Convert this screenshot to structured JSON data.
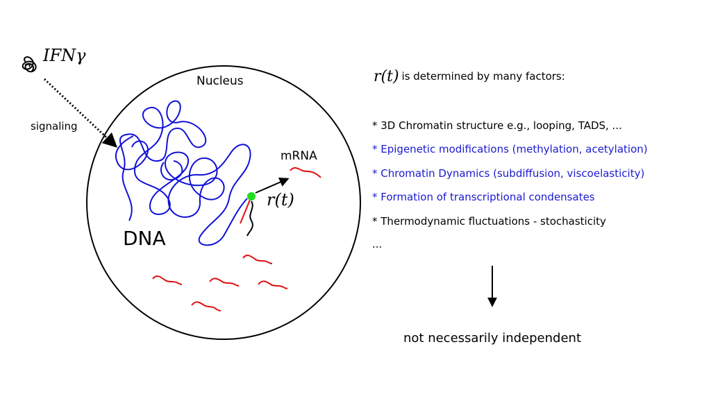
{
  "colors": {
    "black": "#000000",
    "dna_blue": "#1010d8",
    "mrna_red": "#e01010",
    "highlight_green": "#22dd22",
    "factor_blue": "#1a1ad0"
  },
  "diagram": {
    "ifn_label": "IFNγ",
    "signaling_label": "signaling",
    "nucleus_label": "Nucleus",
    "mrna_label": "mRNA",
    "dna_label": "DNA",
    "rt_label": "r(t)"
  },
  "factors": {
    "header_math": "r(t)",
    "header_text": "is determined by many factors:",
    "items": [
      {
        "text": "* 3D Chromatin structure e.g., looping, TADS, ...",
        "color": "#000000"
      },
      {
        "text": "* Epigenetic modifications (methylation, acetylation)",
        "color": "#1a1ad0"
      },
      {
        "text": "* Chromatin Dynamics (subdiffusion, viscoelasticity)",
        "color": "#1a1ad0"
      },
      {
        "text": "* Formation of transcriptional condensates",
        "color": "#1a1ad0"
      },
      {
        "text": "* Thermodynamic fluctuations - stochasticity",
        "color": "#000000"
      },
      {
        "text": "...",
        "color": "#000000"
      }
    ],
    "conclusion": "not necessarily independent"
  }
}
